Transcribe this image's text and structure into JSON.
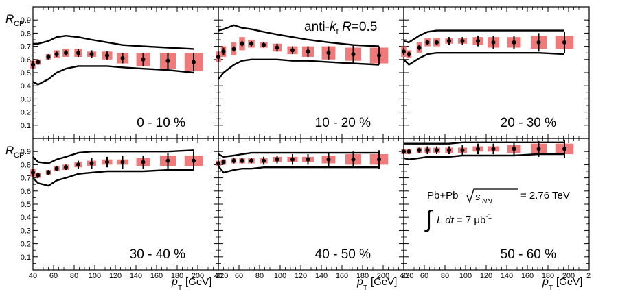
{
  "chart_data": {
    "type": "scatter",
    "ylabel_main": "R",
    "ylabel_sub": "CP",
    "xlabel_main": "p",
    "xlabel_sub": "T",
    "xlabel_unit": "[GeV]",
    "xlim": [
      40,
      220
    ],
    "ylim": [
      0,
      1
    ],
    "x_ticks": [
      40,
      60,
      80,
      100,
      120,
      140,
      160,
      180,
      200
    ],
    "x_edge_tick_label": "220",
    "x_edge_tick_label_clipped": "2",
    "y_ticks": [
      0.1,
      0.2,
      0.3,
      0.4,
      0.5,
      0.6,
      0.7,
      0.8,
      0.9
    ],
    "x_points": [
      40,
      45,
      55,
      63,
      72,
      84,
      97,
      112,
      127,
      147,
      171,
      196
    ],
    "annotation_algo": "anti-",
    "annotation_k": "k",
    "annotation_t": "t",
    "annotation_R": "R",
    "annotation_val": "=0.5",
    "annotation_system": "Pb+Pb",
    "annotation_snn_s": "s",
    "annotation_snn_NN": "NN",
    "annotation_energy": "= 2.76 TeV",
    "annotation_lumi_L": "L dt",
    "annotation_lumi_val": "= 7 μb",
    "annotation_lumi_exp": "-1",
    "colors": {
      "syst_box": "#f07a7a",
      "marker": "#000000",
      "band": "#000000"
    },
    "panels": [
      {
        "label": "0 - 10 %",
        "y": [
          0.56,
          0.58,
          0.62,
          0.64,
          0.65,
          0.65,
          0.64,
          0.63,
          0.61,
          0.6,
          0.59,
          0.58
        ],
        "stat": [
          0.03,
          0.02,
          0.02,
          0.02,
          0.02,
          0.03,
          0.03,
          0.03,
          0.04,
          0.05,
          0.06,
          0.07
        ],
        "syst": [
          0.03,
          0.02,
          0.02,
          0.03,
          0.03,
          0.03,
          0.02,
          0.03,
          0.04,
          0.05,
          0.06,
          0.07
        ],
        "band_upper": [
          0.72,
          0.72,
          0.74,
          0.77,
          0.78,
          0.77,
          0.75,
          0.73,
          0.71,
          0.7,
          0.69,
          0.68
        ],
        "band_lower": [
          0.43,
          0.41,
          0.45,
          0.5,
          0.53,
          0.55,
          0.55,
          0.55,
          0.54,
          0.53,
          0.52,
          0.5
        ]
      },
      {
        "label": "10 - 20 %",
        "y": [
          0.62,
          0.66,
          0.68,
          0.72,
          0.72,
          0.71,
          0.69,
          0.67,
          0.66,
          0.65,
          0.64,
          0.63
        ],
        "stat": [
          0.04,
          0.03,
          0.02,
          0.02,
          0.02,
          0.02,
          0.03,
          0.03,
          0.04,
          0.05,
          0.07,
          0.07
        ],
        "syst": [
          0.04,
          0.04,
          0.05,
          0.05,
          0.03,
          0.02,
          0.03,
          0.03,
          0.04,
          0.05,
          0.05,
          0.06
        ],
        "band_upper": [
          0.82,
          0.83,
          0.86,
          0.84,
          0.83,
          0.81,
          0.79,
          0.77,
          0.75,
          0.73,
          0.71,
          0.7
        ],
        "band_lower": [
          0.45,
          0.5,
          0.56,
          0.59,
          0.6,
          0.6,
          0.6,
          0.59,
          0.59,
          0.58,
          0.57,
          0.56
        ]
      },
      {
        "label": "20 - 30 %",
        "y": [
          0.66,
          0.64,
          0.69,
          0.73,
          0.73,
          0.74,
          0.74,
          0.74,
          0.73,
          0.73,
          0.73,
          0.73
        ],
        "stat": [
          0.03,
          0.02,
          0.02,
          0.02,
          0.02,
          0.03,
          0.03,
          0.04,
          0.05,
          0.05,
          0.07,
          0.08
        ],
        "syst": [
          0.04,
          0.03,
          0.04,
          0.03,
          0.03,
          0.02,
          0.02,
          0.03,
          0.04,
          0.04,
          0.05,
          0.05
        ],
        "band_upper": [
          0.74,
          0.73,
          0.78,
          0.81,
          0.82,
          0.82,
          0.82,
          0.82,
          0.82,
          0.82,
          0.82,
          0.82
        ],
        "band_lower": [
          0.6,
          0.56,
          0.61,
          0.64,
          0.65,
          0.65,
          0.65,
          0.65,
          0.65,
          0.65,
          0.65,
          0.64
        ]
      },
      {
        "label": "30 - 40 %",
        "y": [
          0.74,
          0.72,
          0.74,
          0.77,
          0.78,
          0.8,
          0.81,
          0.82,
          0.82,
          0.82,
          0.83,
          0.83
        ],
        "stat": [
          0.03,
          0.02,
          0.02,
          0.02,
          0.02,
          0.03,
          0.04,
          0.04,
          0.05,
          0.05,
          0.06,
          0.07
        ],
        "syst": [
          0.03,
          0.02,
          0.02,
          0.02,
          0.02,
          0.02,
          0.02,
          0.02,
          0.02,
          0.03,
          0.04,
          0.04
        ],
        "band_upper": [
          0.86,
          0.82,
          0.81,
          0.84,
          0.86,
          0.89,
          0.9,
          0.9,
          0.9,
          0.9,
          0.9,
          0.91
        ],
        "band_lower": [
          0.7,
          0.66,
          0.64,
          0.68,
          0.7,
          0.73,
          0.74,
          0.75,
          0.75,
          0.75,
          0.76,
          0.76
        ]
      },
      {
        "label": "40 - 50 %",
        "y": [
          0.81,
          0.82,
          0.83,
          0.83,
          0.83,
          0.83,
          0.84,
          0.84,
          0.84,
          0.84,
          0.84,
          0.84
        ],
        "stat": [
          0.02,
          0.02,
          0.02,
          0.02,
          0.02,
          0.03,
          0.03,
          0.04,
          0.04,
          0.05,
          0.06,
          0.07
        ],
        "syst": [
          0.02,
          0.02,
          0.02,
          0.02,
          0.02,
          0.02,
          0.02,
          0.02,
          0.02,
          0.03,
          0.04,
          0.04
        ],
        "band_upper": [
          0.88,
          0.86,
          0.87,
          0.88,
          0.89,
          0.89,
          0.89,
          0.89,
          0.89,
          0.89,
          0.89,
          0.89
        ],
        "band_lower": [
          0.79,
          0.74,
          0.76,
          0.77,
          0.77,
          0.78,
          0.78,
          0.78,
          0.78,
          0.78,
          0.78,
          0.78
        ]
      },
      {
        "label": "50 - 60 %",
        "y": [
          0.9,
          0.9,
          0.91,
          0.91,
          0.91,
          0.91,
          0.91,
          0.92,
          0.92,
          0.92,
          0.92,
          0.92
        ],
        "stat": [
          0.02,
          0.02,
          0.02,
          0.03,
          0.03,
          0.03,
          0.04,
          0.04,
          0.04,
          0.05,
          0.06,
          0.07
        ],
        "syst": [
          0.02,
          0.02,
          0.02,
          0.02,
          0.02,
          0.02,
          0.02,
          0.02,
          0.02,
          0.03,
          0.04,
          0.04
        ],
        "band_upper": [
          0.96,
          0.96,
          0.96,
          0.96,
          0.96,
          0.96,
          0.97,
          0.97,
          0.97,
          0.97,
          0.97,
          0.97
        ],
        "band_lower": [
          0.85,
          0.84,
          0.85,
          0.86,
          0.86,
          0.86,
          0.87,
          0.87,
          0.87,
          0.87,
          0.88,
          0.88
        ]
      }
    ]
  }
}
